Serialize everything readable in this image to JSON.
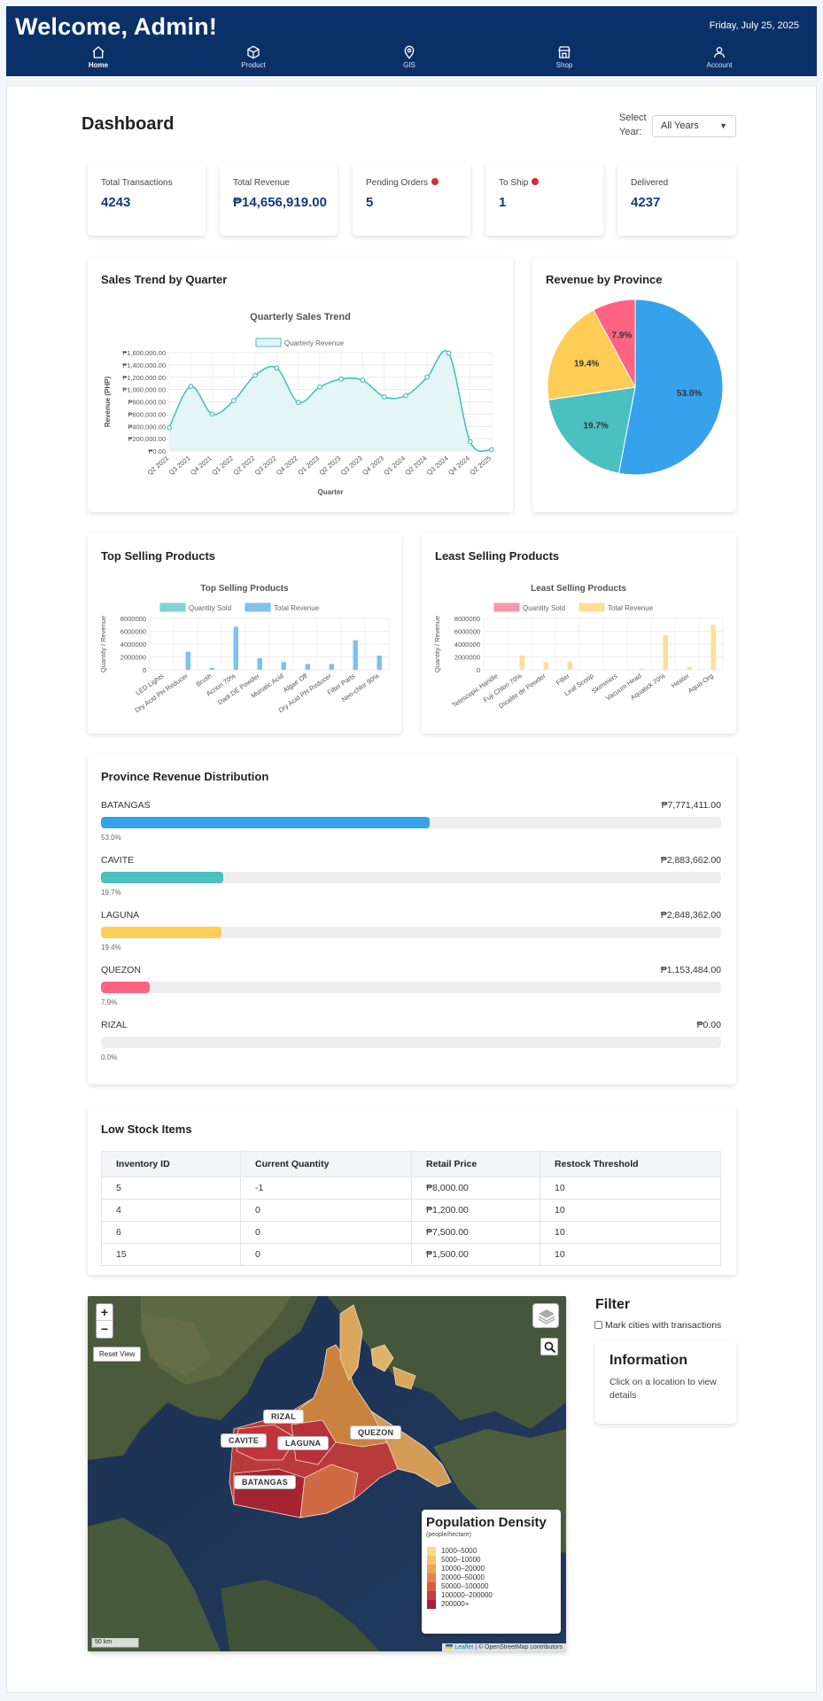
{
  "header": {
    "title": "Welcome, Admin!",
    "date": "Friday, July 25, 2025",
    "nav": [
      {
        "label": "Home",
        "icon": "home-icon"
      },
      {
        "label": "Product",
        "icon": "box-icon"
      },
      {
        "label": "GIS",
        "icon": "map-pin-icon"
      },
      {
        "label": "Shop",
        "icon": "store-icon"
      },
      {
        "label": "Account",
        "icon": "user-icon"
      }
    ]
  },
  "dashboard": {
    "title": "Dashboard",
    "year_label": "Select Year:",
    "year_value": "All Years"
  },
  "stats": [
    {
      "label": "Total Transactions",
      "value": "4243"
    },
    {
      "label": "Total Revenue",
      "value": "₱14,656,919.00"
    },
    {
      "label": "Pending Orders",
      "value": "5"
    },
    {
      "label": "To Ship",
      "value": "1"
    },
    {
      "label": "Delivered",
      "value": "4237"
    }
  ],
  "sales_trend": {
    "card_title": "Sales Trend by Quarter"
  },
  "revenue_by_province": {
    "card_title": "Revenue by Province"
  },
  "top_selling": {
    "card_title": "Top Selling Products"
  },
  "least_selling": {
    "card_title": "Least Selling Products"
  },
  "chart_data": [
    {
      "type": "area",
      "title": "Quarterly Sales Trend",
      "xlabel": "Quarter",
      "ylabel": "Revenue (PHP)",
      "ylim": [
        0,
        1600000
      ],
      "yticks": [
        "₱1,600,000.00",
        "₱1,400,000.00",
        "₱1,200,000.00",
        "₱1,000,000.00",
        "₱800,000.00",
        "₱600,000.00",
        "₱400,000.00",
        "₱200,000.00",
        "₱0.00"
      ],
      "categories": [
        "Q2 2021",
        "Q3 2021",
        "Q4 2021",
        "Q1 2022",
        "Q2 2022",
        "Q3 2022",
        "Q4 2022",
        "Q1 2023",
        "Q2 2023",
        "Q3 2023",
        "Q4 2023",
        "Q1 2024",
        "Q2 2024",
        "Q3 2024",
        "Q4 2024",
        "Q2 2025"
      ],
      "series": [
        {
          "name": "Quarterly Revenue",
          "values": [
            380000,
            1050000,
            600000,
            820000,
            1230000,
            1350000,
            790000,
            1040000,
            1170000,
            1150000,
            880000,
            900000,
            1200000,
            1590000,
            150000,
            20000
          ]
        }
      ],
      "colors": {
        "line": "#4bbfc0",
        "fill": "#e4f5f5"
      },
      "legend": "top",
      "grid": true
    },
    {
      "type": "pie",
      "categories": [
        "BATANGAS",
        "CAVITE",
        "LAGUNA",
        "QUEZON"
      ],
      "values": [
        53.0,
        19.7,
        19.4,
        7.9
      ],
      "labels": [
        "53.0%",
        "19.7%",
        "19.4%",
        "7.9%"
      ],
      "colors": [
        "#36a2eb",
        "#4bc0c0",
        "#ffcd56",
        "#ff6384"
      ]
    },
    {
      "type": "bar",
      "title": "Top Selling Products",
      "ylabel": "Quantity / Revenue",
      "ylim": [
        0,
        8000000
      ],
      "yticks": [
        "8000000",
        "6000000",
        "4000000",
        "2000000",
        "0"
      ],
      "categories": [
        "LED Lights",
        "Dry Acid PH Reducer",
        "Brush",
        "Acrion 70%",
        "Dadi DE Powder",
        "Muriatic Acid",
        "Algae Off",
        "Dry Acid PH Reducer",
        "Filter Parts",
        "Neo-chlor 90%"
      ],
      "series": [
        {
          "name": "Quantity Sold",
          "values": [
            0,
            0,
            0,
            0,
            0,
            0,
            0,
            0,
            0,
            0
          ],
          "color": "#7fd3d3"
        },
        {
          "name": "Total Revenue",
          "values": [
            0,
            2800000,
            300000,
            6700000,
            1800000,
            1200000,
            900000,
            900000,
            4600000,
            2200000
          ],
          "color": "#7ec2ee"
        }
      ],
      "legend": "top",
      "grid": true
    },
    {
      "type": "bar",
      "title": "Least Selling Products",
      "ylabel": "Quantity / Revenue",
      "ylim": [
        0,
        8000000
      ],
      "yticks": [
        "8000000",
        "6000000",
        "4000000",
        "2000000",
        "0"
      ],
      "categories": [
        "Telescopic Handle",
        "Fuji Chlon 70%",
        "Dicalite de Powder",
        "Filter",
        "Leaf Scoop",
        "Skimmers",
        "Vacuum Head",
        "Aquatick 70%",
        "Heater",
        "Aqua-Org"
      ],
      "series": [
        {
          "name": "Quantity Sold",
          "values": [
            0,
            0,
            0,
            0,
            0,
            0,
            0,
            0,
            0,
            0
          ],
          "color": "#f598ab"
        },
        {
          "name": "Total Revenue",
          "values": [
            0,
            2200000,
            1200000,
            1300000,
            0,
            0,
            200000,
            5400000,
            400000,
            7000000
          ],
          "color": "#ffdf96"
        }
      ],
      "legend": "top",
      "grid": true
    }
  ],
  "province_distribution": {
    "title": "Province Revenue Distribution",
    "rows": [
      {
        "name": "BATANGAS",
        "value": "₱7,771,411.00",
        "pct_label": "53.0%",
        "pct": 53.0,
        "color": "#36a2eb"
      },
      {
        "name": "CAVITE",
        "value": "₱2,883,662.00",
        "pct_label": "19.7%",
        "pct": 19.7,
        "color": "#4bc0c0"
      },
      {
        "name": "LAGUNA",
        "value": "₱2,848,362.00",
        "pct_label": "19.4%",
        "pct": 19.4,
        "color": "#ffcd56"
      },
      {
        "name": "QUEZON",
        "value": "₱1,153,484.00",
        "pct_label": "7.9%",
        "pct": 7.9,
        "color": "#ff6384"
      },
      {
        "name": "RIZAL",
        "value": "₱0.00",
        "pct_label": "0.0%",
        "pct": 0.0,
        "color": "#cccccc"
      }
    ]
  },
  "low_stock": {
    "title": "Low Stock Items",
    "columns": [
      "Inventory ID",
      "Current Quantity",
      "Retail Price",
      "Restock Threshold"
    ],
    "rows": [
      [
        "5",
        "-1",
        "₱8,000.00",
        "10"
      ],
      [
        "4",
        "0",
        "₱1,200.00",
        "10"
      ],
      [
        "6",
        "0",
        "₱7,500.00",
        "10"
      ],
      [
        "15",
        "0",
        "₱1,500.00",
        "10"
      ]
    ]
  },
  "map": {
    "zoom_in": "+",
    "zoom_out": "−",
    "reset": "Reset View",
    "labels": [
      "RIZAL",
      "CAVITE",
      "LAGUNA",
      "QUEZON",
      "BATANGAS"
    ],
    "density_title": "Population Density",
    "density_subtitle": "(people/hectare)",
    "density_legend": [
      {
        "label": "1000–5000",
        "color": "#f7d98b"
      },
      {
        "label": "5000–10000",
        "color": "#f5c46e"
      },
      {
        "label": "10000–20000",
        "color": "#f0a35a"
      },
      {
        "label": "20000–50000",
        "color": "#e9824b"
      },
      {
        "label": "50000–100000",
        "color": "#d95b43"
      },
      {
        "label": "100000–200000",
        "color": "#c63b40"
      },
      {
        "label": "200000+",
        "color": "#a91d3a"
      }
    ],
    "scale": "50 km",
    "attribution_link": "Leaflet",
    "attribution_rest": "| © OpenStreetMap contributors"
  },
  "filter": {
    "title": "Filter",
    "checkbox_label": "Mark cities with transactions"
  },
  "information": {
    "title": "Information",
    "text": "Click on a location to view details"
  }
}
